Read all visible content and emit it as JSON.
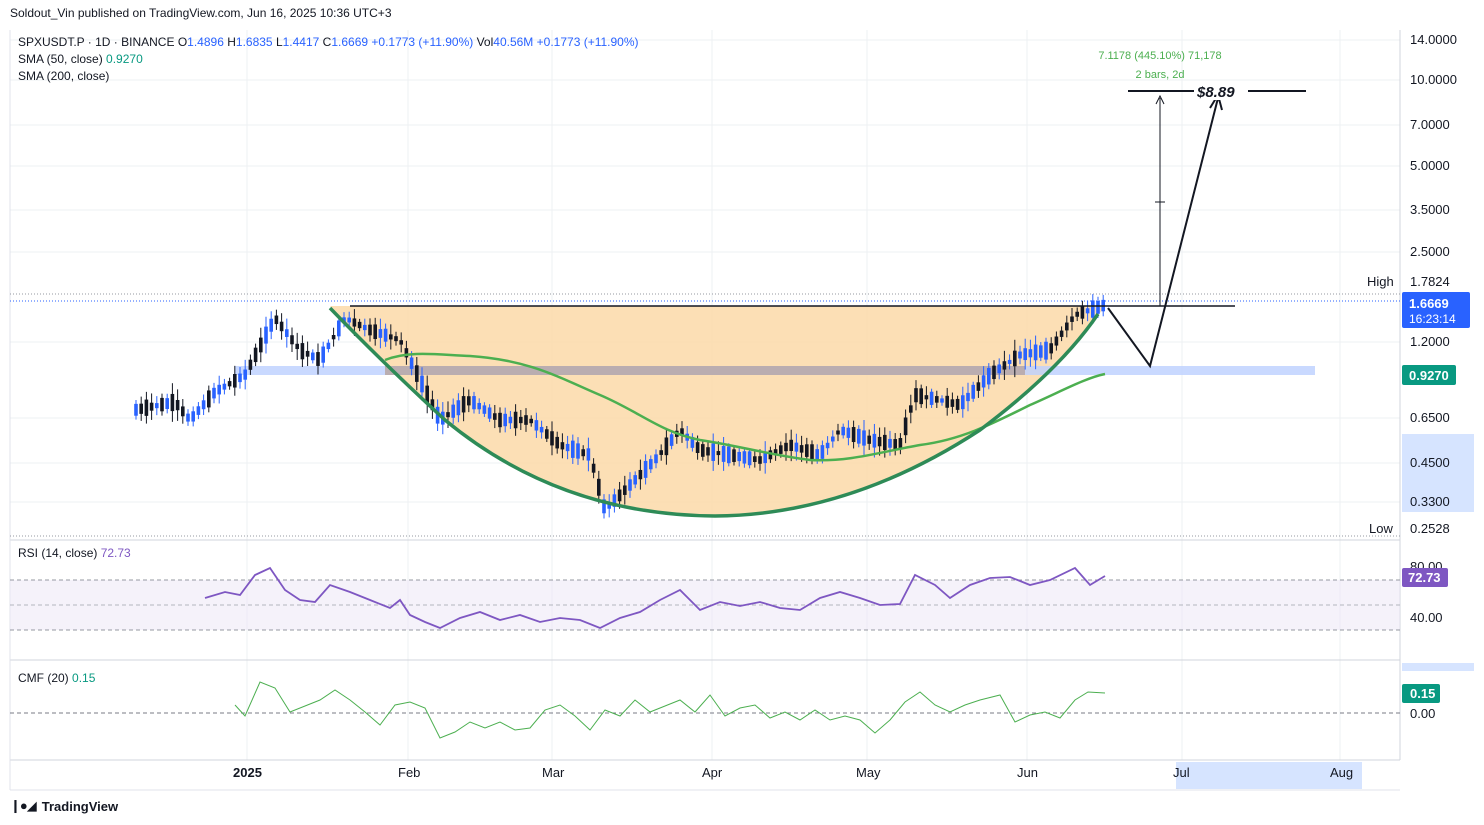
{
  "header": {
    "published": "Soldout_Vin published on TradingView.com, Jun 16, 2025 10:36 UTC+3"
  },
  "legend": {
    "symbol": "SPXUSDT.P · 1D · BINANCE",
    "o_label": "O",
    "o": "1.4896",
    "h_label": "H",
    "h": "1.6835",
    "l_label": "L",
    "l": "1.4417",
    "c_label": "C",
    "c": "1.6669",
    "change": "+0.1773 (+11.90%)",
    "vol_label": "Vol",
    "vol": "40.56M",
    "vol_change": "+0.1773 (+11.90%)",
    "sma50_label": "SMA (50, close)",
    "sma50_value": "0.9270",
    "sma200_label": "SMA (200, close)",
    "rsi_label": "RSI (14, close)",
    "rsi_value": "72.73",
    "cmf_label": "CMF (20)",
    "cmf_value": "0.15"
  },
  "price_axis": {
    "ticks": [
      "14.0000",
      "10.0000",
      "7.0000",
      "5.0000",
      "3.5000",
      "2.5000",
      "1.7824",
      "1.2000",
      "0.6500",
      "0.4500",
      "0.3300",
      "0.2528"
    ],
    "high_label": "High",
    "high_value": "1.7824",
    "low_label": "Low",
    "low_value": "0.2528",
    "last_price": "1.6669",
    "countdown": "16:23:14",
    "sma_badge": "0.9270",
    "colors": {
      "last_price": "#2962ff",
      "sma": "#089981"
    }
  },
  "rsi_axis": {
    "ticks": [
      "80.00",
      "40.00"
    ],
    "badge": "72.73",
    "badge_color": "#7e57c2"
  },
  "cmf_axis": {
    "ticks": [
      "0.00"
    ],
    "badge": "0.15",
    "badge_color": "#089981"
  },
  "time_axis": {
    "labels": [
      "2025",
      "Feb",
      "Mar",
      "Apr",
      "May",
      "Jun",
      "Jul",
      "Aug"
    ]
  },
  "annotations": {
    "measure_top": "7.1178 (445.10%) 71,178",
    "measure_bottom": "2 bars, 2d",
    "target": "$8.89"
  },
  "footer": {
    "brand": "TradingView"
  },
  "chart_data": {
    "type": "candlestick",
    "log_scale": true,
    "ylim": [
      0.2528,
      14.0
    ],
    "sma50": 0.927,
    "pattern": "cup-and-handle",
    "series": [
      {
        "name": "SMA (50, close)",
        "color": "#4caf50"
      },
      {
        "name": "RSI (14, close)",
        "color": "#7e57c2",
        "last": 72.73
      },
      {
        "name": "CMF (20)",
        "color": "#4caf50",
        "last": 0.15
      }
    ],
    "ohlc_last": {
      "o": 1.4896,
      "h": 1.6835,
      "l": 1.4417,
      "c": 1.6669
    },
    "extremes": {
      "high": 1.7824,
      "low": 0.2528
    },
    "target": 8.89
  }
}
